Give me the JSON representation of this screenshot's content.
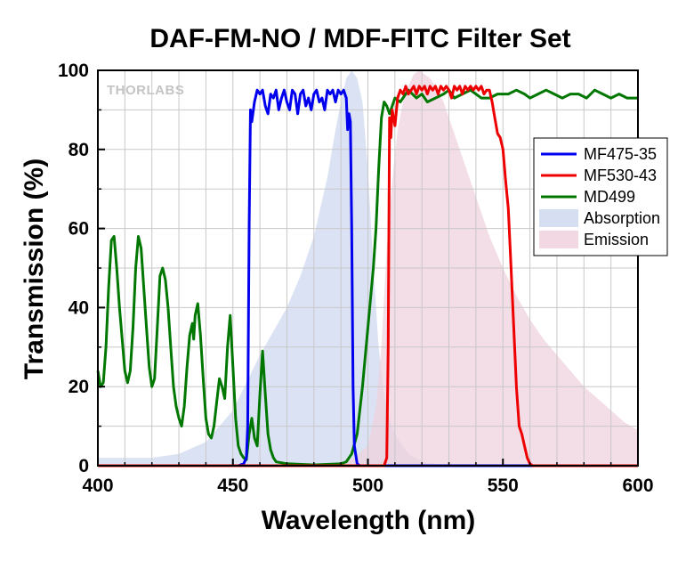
{
  "chart_data": {
    "type": "line",
    "title": "DAF-FM-NO / MDF-FITC Filter Set",
    "xlabel": "Wavelength (nm)",
    "ylabel": "Transmission (%)",
    "xlim": [
      400,
      600
    ],
    "ylim": [
      0,
      100
    ],
    "xticks": [
      "400",
      "450",
      "500",
      "550",
      "600"
    ],
    "yticks": [
      "0",
      "20",
      "40",
      "60",
      "80",
      "100"
    ],
    "grid": true,
    "legend_position": "right",
    "watermark": "THORLABS",
    "series": [
      {
        "name": "MF475-35",
        "kind": "line",
        "color": "#0000ee",
        "points": [
          [
            400,
            0
          ],
          [
            452,
            0
          ],
          [
            454,
            0.5
          ],
          [
            455,
            2
          ],
          [
            455.5,
            10
          ],
          [
            456,
            60
          ],
          [
            456.5,
            90
          ],
          [
            457,
            87
          ],
          [
            458,
            92
          ],
          [
            459,
            95
          ],
          [
            460,
            94
          ],
          [
            461,
            95
          ],
          [
            462,
            91
          ],
          [
            463,
            89
          ],
          [
            464,
            94
          ],
          [
            465,
            93
          ],
          [
            466,
            95
          ],
          [
            467,
            90
          ],
          [
            468,
            93
          ],
          [
            469,
            95
          ],
          [
            470,
            92
          ],
          [
            471,
            90
          ],
          [
            472,
            95
          ],
          [
            473,
            94
          ],
          [
            474,
            89
          ],
          [
            475,
            94
          ],
          [
            476,
            95
          ],
          [
            477,
            91
          ],
          [
            478,
            93
          ],
          [
            479,
            90
          ],
          [
            480,
            94
          ],
          [
            481,
            95
          ],
          [
            482,
            92
          ],
          [
            483,
            93
          ],
          [
            484,
            90
          ],
          [
            485,
            95
          ],
          [
            486,
            94
          ],
          [
            487,
            95
          ],
          [
            488,
            92
          ],
          [
            489,
            95
          ],
          [
            490,
            94
          ],
          [
            491,
            95
          ],
          [
            492,
            93
          ],
          [
            492.5,
            85
          ],
          [
            493,
            89
          ],
          [
            493.5,
            87
          ],
          [
            494,
            60
          ],
          [
            494.5,
            20
          ],
          [
            495,
            5
          ],
          [
            496,
            0.5
          ],
          [
            497,
            0
          ],
          [
            600,
            0
          ]
        ]
      },
      {
        "name": "MF530-43",
        "kind": "line",
        "color": "#ee0000",
        "points": [
          [
            400,
            0
          ],
          [
            506,
            0
          ],
          [
            507,
            2
          ],
          [
            507.5,
            30
          ],
          [
            508,
            88
          ],
          [
            508.5,
            83
          ],
          [
            509,
            90
          ],
          [
            510,
            86
          ],
          [
            511,
            93
          ],
          [
            512,
            95
          ],
          [
            513,
            94
          ],
          [
            514,
            96
          ],
          [
            515,
            94
          ],
          [
            516,
            95
          ],
          [
            517,
            96
          ],
          [
            518,
            94
          ],
          [
            519,
            96
          ],
          [
            520,
            95
          ],
          [
            521,
            96
          ],
          [
            522,
            94
          ],
          [
            523,
            96
          ],
          [
            524,
            95
          ],
          [
            525,
            96
          ],
          [
            526,
            94
          ],
          [
            527,
            96
          ],
          [
            528,
            95
          ],
          [
            529,
            96
          ],
          [
            530,
            95
          ],
          [
            531,
            93
          ],
          [
            532,
            96
          ],
          [
            533,
            95
          ],
          [
            534,
            96
          ],
          [
            535,
            94
          ],
          [
            536,
            96
          ],
          [
            537,
            95
          ],
          [
            538,
            96
          ],
          [
            539,
            95
          ],
          [
            540,
            96
          ],
          [
            541,
            95
          ],
          [
            542,
            96
          ],
          [
            543,
            94
          ],
          [
            544,
            95
          ],
          [
            545,
            95
          ],
          [
            546,
            92
          ],
          [
            547,
            88
          ],
          [
            548,
            84
          ],
          [
            549,
            83
          ],
          [
            550,
            80
          ],
          [
            551,
            72
          ],
          [
            552,
            65
          ],
          [
            553,
            50
          ],
          [
            554,
            35
          ],
          [
            555,
            20
          ],
          [
            556,
            10
          ],
          [
            557,
            8
          ],
          [
            558,
            5
          ],
          [
            559,
            2
          ],
          [
            560,
            0.5
          ],
          [
            561,
            0
          ],
          [
            600,
            0
          ]
        ]
      },
      {
        "name": "MD499",
        "kind": "line",
        "color": "#007700",
        "points": [
          [
            400,
            24
          ],
          [
            401,
            20
          ],
          [
            402,
            21
          ],
          [
            403,
            30
          ],
          [
            404,
            45
          ],
          [
            405,
            57
          ],
          [
            406,
            58
          ],
          [
            407,
            50
          ],
          [
            408,
            40
          ],
          [
            409,
            32
          ],
          [
            410,
            24
          ],
          [
            411,
            21
          ],
          [
            412,
            24
          ],
          [
            413,
            35
          ],
          [
            414,
            50
          ],
          [
            415,
            58
          ],
          [
            416,
            55
          ],
          [
            417,
            45
          ],
          [
            418,
            35
          ],
          [
            419,
            25
          ],
          [
            420,
            20
          ],
          [
            421,
            22
          ],
          [
            422,
            35
          ],
          [
            423,
            48
          ],
          [
            424,
            50
          ],
          [
            425,
            47
          ],
          [
            426,
            40
          ],
          [
            427,
            30
          ],
          [
            428,
            20
          ],
          [
            429,
            15
          ],
          [
            430,
            12
          ],
          [
            431,
            10
          ],
          [
            432,
            15
          ],
          [
            433,
            25
          ],
          [
            434,
            33
          ],
          [
            435,
            36
          ],
          [
            435.5,
            32
          ],
          [
            436,
            38
          ],
          [
            437,
            41
          ],
          [
            438,
            33
          ],
          [
            439,
            22
          ],
          [
            440,
            12
          ],
          [
            441,
            8
          ],
          [
            442,
            7
          ],
          [
            443,
            10
          ],
          [
            444,
            16
          ],
          [
            445,
            22
          ],
          [
            446,
            20
          ],
          [
            447,
            17
          ],
          [
            448,
            30
          ],
          [
            449,
            38
          ],
          [
            450,
            25
          ],
          [
            451,
            12
          ],
          [
            452,
            5
          ],
          [
            453,
            3
          ],
          [
            454,
            2
          ],
          [
            455,
            1.5
          ],
          [
            456,
            8
          ],
          [
            457,
            12
          ],
          [
            458,
            7
          ],
          [
            459,
            5
          ],
          [
            460,
            18
          ],
          [
            461,
            29
          ],
          [
            462,
            18
          ],
          [
            463,
            8
          ],
          [
            464,
            4
          ],
          [
            465,
            2
          ],
          [
            466,
            1
          ],
          [
            470,
            0.5
          ],
          [
            480,
            0.2
          ],
          [
            490,
            0.5
          ],
          [
            492,
            1
          ],
          [
            494,
            3
          ],
          [
            496,
            8
          ],
          [
            498,
            20
          ],
          [
            500,
            35
          ],
          [
            502,
            50
          ],
          [
            503,
            60
          ],
          [
            504,
            75
          ],
          [
            505,
            88
          ],
          [
            506,
            92
          ],
          [
            507,
            91
          ],
          [
            508,
            89
          ],
          [
            510,
            93
          ],
          [
            512,
            92
          ],
          [
            515,
            95
          ],
          [
            518,
            93
          ],
          [
            520,
            94
          ],
          [
            522,
            92
          ],
          [
            525,
            93
          ],
          [
            528,
            94
          ],
          [
            530,
            95
          ],
          [
            532,
            93
          ],
          [
            535,
            94
          ],
          [
            538,
            95
          ],
          [
            540,
            94
          ],
          [
            542,
            93
          ],
          [
            545,
            93
          ],
          [
            548,
            94
          ],
          [
            550,
            94
          ],
          [
            552,
            94
          ],
          [
            555,
            95
          ],
          [
            558,
            94
          ],
          [
            560,
            93
          ],
          [
            563,
            94
          ],
          [
            566,
            95
          ],
          [
            569,
            94
          ],
          [
            572,
            93
          ],
          [
            575,
            94
          ],
          [
            578,
            94
          ],
          [
            581,
            93
          ],
          [
            584,
            95
          ],
          [
            587,
            94
          ],
          [
            590,
            93
          ],
          [
            593,
            94
          ],
          [
            596,
            93
          ],
          [
            598,
            93
          ],
          [
            600,
            93
          ]
        ]
      },
      {
        "name": "Absorption",
        "kind": "area",
        "color": "#cfd8ef",
        "points": [
          [
            400,
            2
          ],
          [
            420,
            2
          ],
          [
            430,
            3
          ],
          [
            440,
            6
          ],
          [
            445,
            10
          ],
          [
            450,
            14
          ],
          [
            455,
            21
          ],
          [
            460,
            28
          ],
          [
            465,
            34
          ],
          [
            470,
            40
          ],
          [
            475,
            48
          ],
          [
            480,
            58
          ],
          [
            485,
            73
          ],
          [
            488,
            85
          ],
          [
            490,
            92
          ],
          [
            492,
            98
          ],
          [
            494,
            100
          ],
          [
            496,
            98
          ],
          [
            498,
            92
          ],
          [
            500,
            75
          ],
          [
            502,
            50
          ],
          [
            504,
            30
          ],
          [
            506,
            18
          ],
          [
            508,
            12
          ],
          [
            510,
            8
          ],
          [
            515,
            3
          ],
          [
            520,
            1
          ],
          [
            530,
            0
          ],
          [
            600,
            0
          ]
        ]
      },
      {
        "name": "Emission",
        "kind": "area",
        "color": "#efd1dd",
        "points": [
          [
            400,
            0
          ],
          [
            480,
            0
          ],
          [
            490,
            0.5
          ],
          [
            495,
            2
          ],
          [
            500,
            5
          ],
          [
            503,
            15
          ],
          [
            505,
            30
          ],
          [
            507,
            55
          ],
          [
            509,
            72
          ],
          [
            511,
            85
          ],
          [
            513,
            92
          ],
          [
            515,
            96
          ],
          [
            517,
            99
          ],
          [
            519,
            100
          ],
          [
            521,
            99
          ],
          [
            523,
            98
          ],
          [
            525,
            96
          ],
          [
            528,
            92
          ],
          [
            530,
            88
          ],
          [
            535,
            78
          ],
          [
            540,
            68
          ],
          [
            545,
            58
          ],
          [
            550,
            50
          ],
          [
            555,
            43
          ],
          [
            560,
            37
          ],
          [
            565,
            32
          ],
          [
            570,
            28
          ],
          [
            575,
            24
          ],
          [
            580,
            20
          ],
          [
            585,
            17
          ],
          [
            590,
            14
          ],
          [
            595,
            11
          ],
          [
            600,
            9
          ]
        ]
      }
    ]
  }
}
